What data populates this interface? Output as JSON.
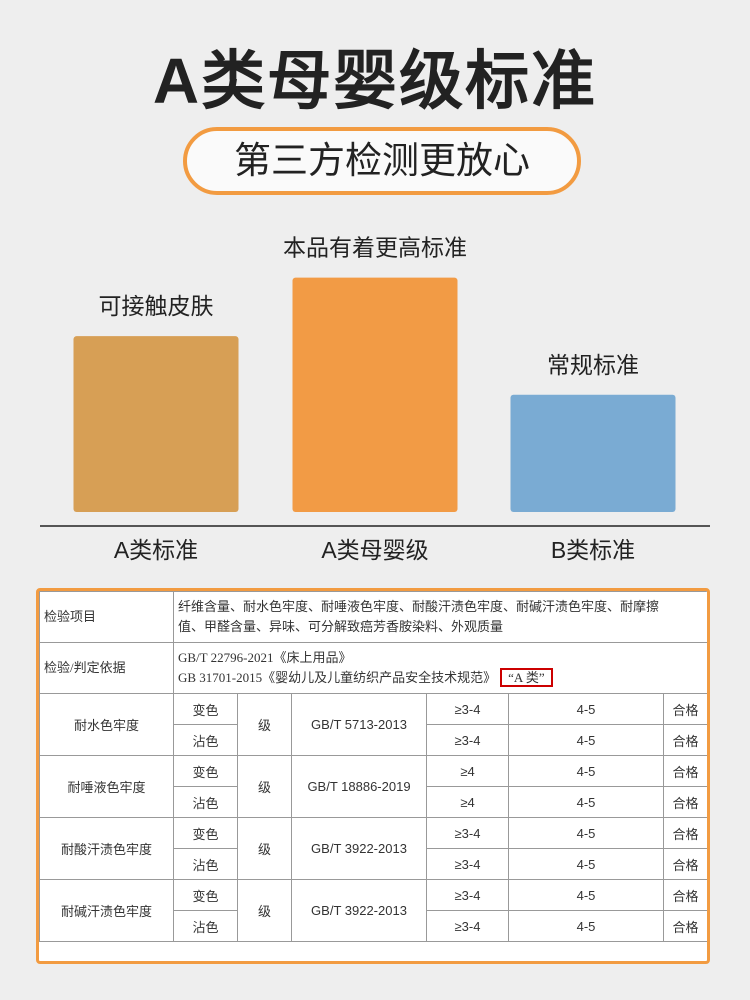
{
  "header": {
    "title": "A类母婴级标准",
    "subtitle": "第三方检测更放心"
  },
  "chart_data": {
    "type": "bar",
    "categories": [
      "A类标准",
      "A类母婴级",
      "B类标准"
    ],
    "values": [
      3,
      4,
      2
    ],
    "bar_labels": [
      "可接触皮肤",
      "本品有着更高标准",
      "常规标准"
    ],
    "colors": [
      "#d79f55",
      "#f29b45",
      "#7aabd3"
    ],
    "ylim": [
      0,
      4.3
    ],
    "grid": false
  },
  "table": {
    "items_label": "检验项目",
    "items_text_1": "纤维含量、耐水色牢度、耐唾液色牢度、耐酸汗渍色牢度、耐碱汗渍色牢度、耐摩擦",
    "items_text_2": "值、甲醛含量、异味、可分解致癌芳香胺染料、外观质量",
    "basis_label": "检验/判定依据",
    "basis_1": "GB/T 22796-2021《床上用品》",
    "basis_2": "GB 31701-2015《婴幼儿及儿童纺织产品安全技术规范》",
    "basis_highlight": "“A 类”",
    "groups": [
      {
        "name": "耐水色牢度",
        "unit": "级",
        "standard": "GB/T 5713-2013",
        "rows": [
          {
            "sub": "变色",
            "req": "≥3-4",
            "result": "4-5",
            "verdict": "合格"
          },
          {
            "sub": "沾色",
            "req": "≥3-4",
            "result": "4-5",
            "verdict": "合格"
          }
        ]
      },
      {
        "name": "耐唾液色牢度",
        "unit": "级",
        "standard": "GB/T 18886-2019",
        "rows": [
          {
            "sub": "变色",
            "req": "≥4",
            "result": "4-5",
            "verdict": "合格"
          },
          {
            "sub": "沾色",
            "req": "≥4",
            "result": "4-5",
            "verdict": "合格"
          }
        ]
      },
      {
        "name": "耐酸汗渍色牢度",
        "unit": "级",
        "standard": "GB/T 3922-2013",
        "rows": [
          {
            "sub": "变色",
            "req": "≥3-4",
            "result": "4-5",
            "verdict": "合格"
          },
          {
            "sub": "沾色",
            "req": "≥3-4",
            "result": "4-5",
            "verdict": "合格"
          }
        ]
      },
      {
        "name": "耐碱汗渍色牢度",
        "unit": "级",
        "standard": "GB/T 3922-2013",
        "rows": [
          {
            "sub": "变色",
            "req": "≥3-4",
            "result": "4-5",
            "verdict": "合格"
          },
          {
            "sub": "沾色",
            "req": "≥3-4",
            "result": "4-5",
            "verdict": "合格"
          }
        ]
      }
    ]
  }
}
